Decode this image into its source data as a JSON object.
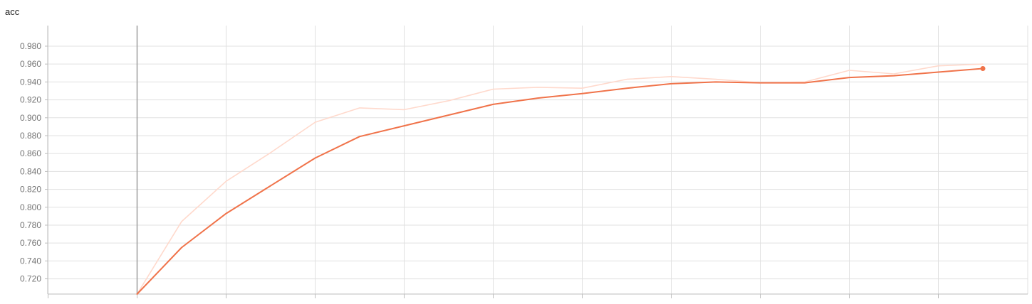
{
  "chart_data": {
    "type": "line",
    "title": "acc",
    "xlabel": "",
    "ylabel": "",
    "x_range": [
      -2,
      19
    ],
    "x_grid": [
      -2,
      0,
      2,
      4,
      6,
      8,
      10,
      12,
      14,
      16,
      18
    ],
    "ylim": [
      0.703,
      1.003
    ],
    "yticks": [
      "0.720",
      "0.740",
      "0.760",
      "0.780",
      "0.800",
      "0.820",
      "0.840",
      "0.860",
      "0.880",
      "0.900",
      "0.920",
      "0.940",
      "0.960",
      "0.980"
    ],
    "grid": true,
    "legend": "none",
    "series": [
      {
        "role": "raw",
        "color": "#ffd9cc",
        "x": [
          0,
          1,
          2,
          3,
          4,
          5,
          6,
          7,
          8,
          9,
          10,
          11,
          12,
          13,
          14,
          15,
          16,
          17,
          18,
          19
        ],
        "values": [
          0.703,
          0.784,
          0.829,
          0.861,
          0.895,
          0.911,
          0.909,
          0.919,
          0.932,
          0.934,
          0.933,
          0.943,
          0.946,
          0.943,
          0.939,
          0.94,
          0.953,
          0.949,
          0.958,
          0.96
        ]
      },
      {
        "role": "smoothed",
        "color": "#f0734a",
        "x": [
          0,
          1,
          2,
          3,
          4,
          5,
          6,
          7,
          8,
          9,
          10,
          11,
          12,
          13,
          14,
          15,
          16,
          17,
          18,
          19
        ],
        "values": [
          0.703,
          0.755,
          0.793,
          0.824,
          0.855,
          0.879,
          0.891,
          0.903,
          0.915,
          0.922,
          0.927,
          0.933,
          0.938,
          0.94,
          0.939,
          0.939,
          0.945,
          0.947,
          0.951,
          0.955
        ]
      }
    ],
    "marker_line_x": 0
  }
}
